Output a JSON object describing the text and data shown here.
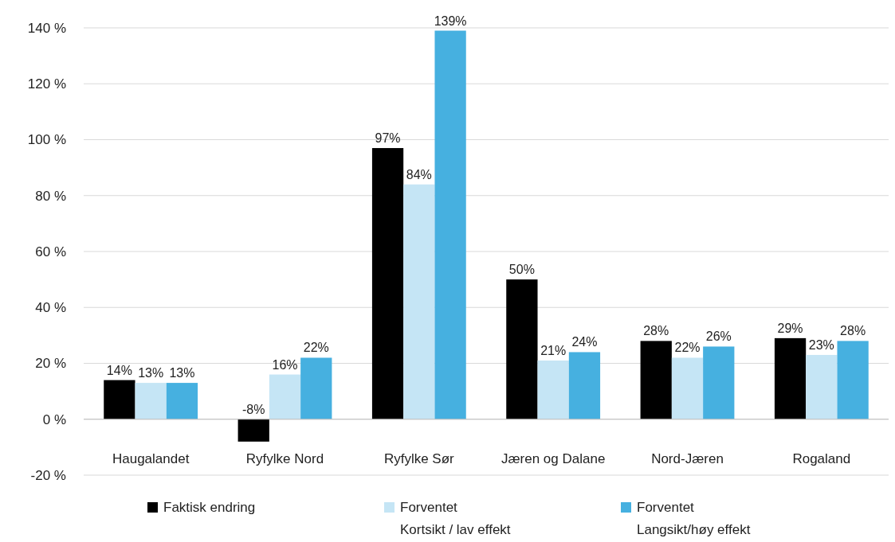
{
  "chart_data": {
    "type": "bar",
    "categories": [
      "Haugalandet",
      "Ryfylke Nord",
      "Ryfylke Sør",
      "Jæren og Dalane",
      "Nord-Jæren",
      "Rogaland"
    ],
    "series": [
      {
        "name": "Faktisk endring",
        "color": "#000000",
        "values": [
          14,
          -8,
          97,
          50,
          28,
          29
        ],
        "value_labels": [
          "14%",
          "-8%",
          "97%",
          "50%",
          "28%",
          "29%"
        ]
      },
      {
        "name": "Forventet\nKortsikt / lav effekt",
        "color": "#c5e5f5",
        "values": [
          13,
          16,
          84,
          21,
          22,
          23
        ],
        "value_labels": [
          "13%",
          "16%",
          "84%",
          "21%",
          "22%",
          "23%"
        ]
      },
      {
        "name": "Forventet\nLangsikt/høy effekt",
        "color": "#46b0e0",
        "values": [
          13,
          22,
          139,
          24,
          26,
          28
        ],
        "value_labels": [
          "13%",
          "22%",
          "139%",
          "24%",
          "26%",
          "28%"
        ]
      }
    ],
    "ylim": [
      -20,
      140
    ],
    "yticks": [
      {
        "value": -20,
        "label": "-20 %"
      },
      {
        "value": 0,
        "label": "0 %"
      },
      {
        "value": 20,
        "label": "20 %"
      },
      {
        "value": 40,
        "label": "40 %"
      },
      {
        "value": 60,
        "label": "60 %"
      },
      {
        "value": 80,
        "label": "80 %"
      },
      {
        "value": 100,
        "label": "100 %"
      },
      {
        "value": 120,
        "label": "120 %"
      },
      {
        "value": 140,
        "label": "140 %"
      }
    ],
    "grid": "y",
    "legend": "bottom"
  }
}
